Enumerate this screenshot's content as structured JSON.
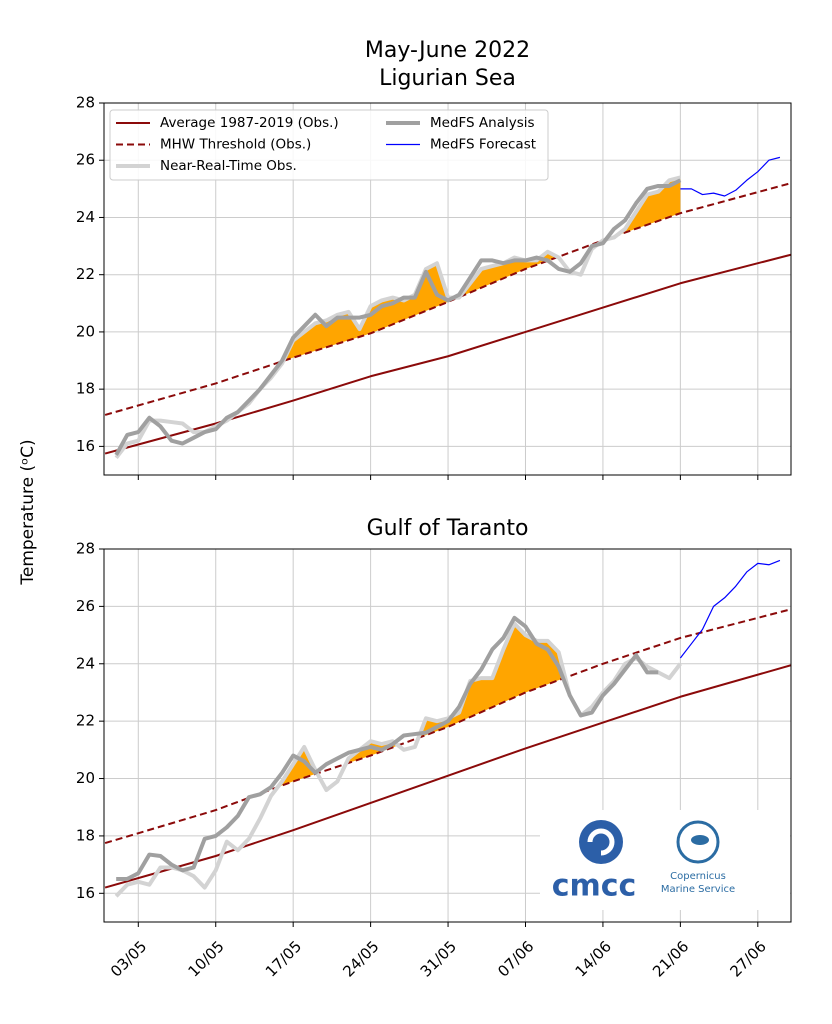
{
  "shared_ylabel": "Temperature (ᵒC)",
  "logos": {
    "cmcc": "cmcc",
    "copernicus": [
      "Copernicus",
      "Marine Service"
    ]
  },
  "chart_data": [
    {
      "type": "line",
      "title": "May-June 2022",
      "subtitle": "Ligurian Sea",
      "xlim": [
        -1.1,
        61
      ],
      "xticks": [
        2,
        9,
        16,
        23,
        30,
        37,
        44,
        51,
        58
      ],
      "show_xtick_labels": false,
      "ylim": [
        15,
        28
      ],
      "yticks": [
        16,
        18,
        20,
        22,
        24,
        26,
        28
      ],
      "grid": true,
      "legend": "upper left",
      "legend_columns": 2,
      "fill_above": {
        "series": 2,
        "threshold": 1,
        "color": "#ffa500"
      },
      "series": [
        {
          "name": "Average 1987-2019 (Obs.)",
          "color": "#8b0a0a",
          "style": "solid",
          "width": 2,
          "x": [
            -1,
            9,
            16,
            23,
            30,
            37,
            44,
            51,
            61
          ],
          "values": [
            15.75,
            16.8,
            17.6,
            18.45,
            19.15,
            20.0,
            20.85,
            21.7,
            22.7
          ]
        },
        {
          "name": "MHW Threshold (Obs.)",
          "color": "#8b0a0a",
          "style": "dashed",
          "width": 2,
          "x": [
            -1,
            9,
            16,
            23,
            30,
            37,
            44,
            51,
            61
          ],
          "values": [
            17.1,
            18.2,
            19.1,
            19.95,
            21.05,
            22.2,
            23.2,
            24.15,
            25.2
          ]
        },
        {
          "name": "Near-Real-Time Obs.",
          "color": "#d3d3d3",
          "style": "solid",
          "width": 4,
          "x": [
            0,
            1,
            2,
            3,
            4,
            5,
            6,
            7,
            8,
            9,
            10,
            11,
            12,
            13,
            14,
            15,
            16,
            17,
            18,
            19,
            20,
            21,
            22,
            23,
            24,
            25,
            26,
            27,
            28,
            29,
            30,
            31,
            32,
            33,
            34,
            35,
            36,
            37,
            38,
            39,
            40,
            41,
            42,
            43,
            44,
            45,
            46,
            47,
            48,
            49,
            50,
            51
          ],
          "values": [
            15.6,
            16.1,
            16.2,
            16.9,
            16.9,
            16.85,
            16.8,
            16.5,
            16.5,
            16.7,
            16.9,
            17.2,
            17.5,
            18.0,
            18.4,
            18.9,
            19.7,
            20.0,
            20.3,
            20.4,
            20.6,
            20.7,
            20.1,
            20.9,
            21.1,
            21.2,
            21.1,
            21.3,
            22.2,
            22.4,
            21.2,
            21.2,
            21.7,
            22.2,
            22.3,
            22.4,
            22.6,
            22.5,
            22.5,
            22.8,
            22.6,
            22.1,
            22.0,
            22.9,
            23.2,
            23.3,
            23.6,
            24.2,
            24.8,
            24.9,
            25.3,
            25.4
          ]
        },
        {
          "name": "MedFS Analysis",
          "color": "#a0a0a0",
          "style": "solid",
          "width": 4,
          "x": [
            0,
            1,
            2,
            3,
            4,
            5,
            6,
            7,
            8,
            9,
            10,
            11,
            12,
            13,
            14,
            15,
            16,
            17,
            18,
            19,
            20,
            21,
            22,
            23,
            24,
            25,
            26,
            27,
            28,
            29,
            30,
            31,
            32,
            33,
            34,
            35,
            36,
            37,
            38,
            39,
            40,
            41,
            42,
            43,
            44,
            45,
            46,
            47,
            48,
            49,
            50,
            51
          ],
          "values": [
            15.7,
            16.4,
            16.5,
            17.0,
            16.7,
            16.2,
            16.1,
            16.3,
            16.5,
            16.6,
            17.0,
            17.2,
            17.6,
            18.0,
            18.5,
            19.0,
            19.8,
            20.2,
            20.6,
            20.2,
            20.5,
            20.5,
            20.5,
            20.6,
            20.9,
            21.0,
            21.2,
            21.2,
            22.1,
            21.3,
            21.1,
            21.3,
            21.9,
            22.5,
            22.5,
            22.4,
            22.5,
            22.5,
            22.6,
            22.5,
            22.2,
            22.1,
            22.4,
            23.0,
            23.1,
            23.6,
            23.9,
            24.5,
            25.0,
            25.1,
            25.1,
            25.3
          ]
        },
        {
          "name": "MedFS Forecast",
          "color": "#0000ff",
          "style": "solid",
          "width": 1.2,
          "x": [
            51,
            52,
            53,
            54,
            55,
            56,
            57,
            58,
            59,
            60
          ],
          "values": [
            25.0,
            25.0,
            24.8,
            24.85,
            24.75,
            24.95,
            25.3,
            25.6,
            26.0,
            26.1
          ]
        }
      ]
    },
    {
      "type": "line",
      "title": "Gulf of Taranto",
      "xlim": [
        -1.1,
        61
      ],
      "xticks": [
        {
          "value": 2,
          "label": "03/05"
        },
        {
          "value": 9,
          "label": "10/05"
        },
        {
          "value": 16,
          "label": "17/05"
        },
        {
          "value": 23,
          "label": "24/05"
        },
        {
          "value": 30,
          "label": "31/05"
        },
        {
          "value": 37,
          "label": "07/06"
        },
        {
          "value": 44,
          "label": "14/06"
        },
        {
          "value": 51,
          "label": "21/06"
        },
        {
          "value": 58,
          "label": "27/06"
        }
      ],
      "show_xtick_labels": true,
      "ylim": [
        15,
        28
      ],
      "yticks": [
        16,
        18,
        20,
        22,
        24,
        26,
        28
      ],
      "grid": true,
      "fill_above": {
        "series": 2,
        "threshold": 1,
        "color": "#ffa500"
      },
      "series": [
        {
          "color": "#8b0a0a",
          "style": "solid",
          "width": 2,
          "x": [
            -1,
            9,
            16,
            23,
            30,
            37,
            44,
            51,
            61
          ],
          "values": [
            16.2,
            17.3,
            18.2,
            19.15,
            20.1,
            21.05,
            21.95,
            22.85,
            23.95
          ]
        },
        {
          "color": "#8b0a0a",
          "style": "dashed",
          "width": 2,
          "x": [
            -1,
            9,
            16,
            23,
            30,
            37,
            44,
            51,
            61
          ],
          "values": [
            17.75,
            18.9,
            19.9,
            20.8,
            21.8,
            23.0,
            24.0,
            24.9,
            25.9
          ]
        },
        {
          "color": "#d3d3d3",
          "style": "solid",
          "width": 4,
          "x": [
            0,
            1,
            2,
            3,
            4,
            5,
            6,
            7,
            8,
            9,
            10,
            11,
            12,
            13,
            14,
            15,
            16,
            17,
            18,
            19,
            20,
            21,
            22,
            23,
            24,
            25,
            26,
            27,
            28,
            29,
            30,
            31,
            32,
            33,
            34,
            35,
            36,
            37,
            38,
            39,
            40,
            41,
            42,
            43,
            44,
            45,
            46,
            47,
            48,
            49,
            50,
            51
          ],
          "values": [
            15.9,
            16.3,
            16.4,
            16.3,
            16.9,
            16.9,
            16.8,
            16.6,
            16.2,
            16.8,
            17.8,
            17.5,
            17.9,
            18.6,
            19.4,
            19.9,
            20.5,
            21.1,
            20.3,
            19.6,
            19.9,
            20.7,
            21.0,
            21.3,
            21.2,
            21.3,
            21.0,
            21.1,
            22.1,
            22.0,
            22.1,
            22.3,
            23.4,
            23.5,
            23.5,
            24.5,
            25.4,
            25.0,
            24.8,
            24.8,
            24.4,
            22.9,
            22.2,
            22.5,
            23.0,
            23.4,
            24.0,
            24.2,
            23.9,
            23.7,
            23.5,
            24.0
          ]
        },
        {
          "color": "#a0a0a0",
          "style": "solid",
          "width": 4,
          "x": [
            0,
            1,
            2,
            3,
            4,
            5,
            6,
            7,
            8,
            9,
            10,
            11,
            12,
            13,
            14,
            15,
            16,
            17,
            18,
            19,
            20,
            21,
            22,
            23,
            24,
            25,
            26,
            27,
            28,
            29,
            30,
            31,
            32,
            33,
            34,
            35,
            36,
            37,
            38,
            39,
            40,
            41,
            42,
            43,
            44,
            45,
            46,
            47,
            48,
            49
          ],
          "values": [
            16.5,
            16.5,
            16.7,
            17.35,
            17.3,
            17.0,
            16.8,
            16.9,
            17.9,
            18.0,
            18.3,
            18.7,
            19.35,
            19.45,
            19.7,
            20.2,
            20.8,
            20.6,
            20.2,
            20.5,
            20.7,
            20.9,
            21.0,
            21.1,
            21.0,
            21.2,
            21.5,
            21.55,
            21.6,
            21.8,
            22.0,
            22.5,
            23.3,
            23.8,
            24.5,
            24.9,
            25.6,
            25.3,
            24.7,
            24.5,
            23.9,
            22.9,
            22.2,
            22.3,
            22.9,
            23.3,
            23.8,
            24.3,
            23.7,
            23.7
          ]
        },
        {
          "color": "#0000ff",
          "style": "solid",
          "width": 1.2,
          "x": [
            51,
            52,
            53,
            54,
            55,
            56,
            57,
            58,
            59,
            60
          ],
          "values": [
            24.2,
            24.7,
            25.2,
            26.0,
            26.3,
            26.7,
            27.2,
            27.5,
            27.45,
            27.6
          ]
        }
      ]
    }
  ]
}
